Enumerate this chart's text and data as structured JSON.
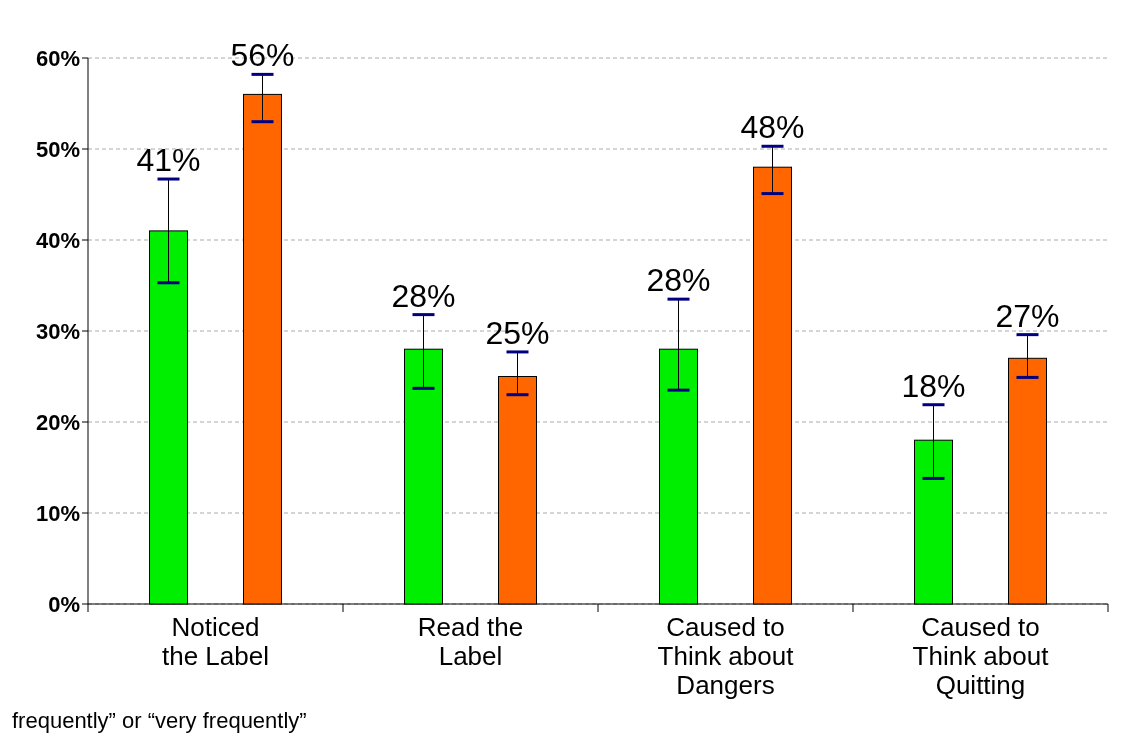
{
  "chart_data": {
    "type": "bar",
    "categories": [
      "Noticed\nthe Label",
      "Read the\nLabel",
      "Caused to\nThink about\nDangers",
      "Caused to\nThink about\nQuitting"
    ],
    "series": [
      {
        "color": "#00ee00",
        "values": [
          41,
          28,
          28,
          18
        ],
        "value_labels": [
          "41%",
          "28%",
          "28%",
          "18%"
        ],
        "errors": [
          [
            35.3,
            46.7
          ],
          [
            23.7,
            31.8
          ],
          [
            23.5,
            33.5
          ],
          [
            13.8,
            21.9
          ]
        ]
      },
      {
        "color": "#ff6600",
        "values": [
          56,
          25,
          48,
          27
        ],
        "value_labels": [
          "56%",
          "25%",
          "48%",
          "27%"
        ],
        "errors": [
          [
            53,
            58.2
          ],
          [
            23,
            27.7
          ],
          [
            45.1,
            50.3
          ],
          [
            24.9,
            29.6
          ]
        ]
      }
    ],
    "ylim": [
      0,
      60
    ],
    "yticks": [
      {
        "value": 0,
        "label": "0%"
      },
      {
        "value": 10,
        "label": "10%"
      },
      {
        "value": 20,
        "label": "20%"
      },
      {
        "value": 30,
        "label": "30%"
      },
      {
        "value": 40,
        "label": "40%"
      },
      {
        "value": 50,
        "label": "50%"
      },
      {
        "value": 60,
        "label": "60%"
      }
    ],
    "grid": "y",
    "annotations": [
      "frequently” or “very frequently”"
    ]
  }
}
